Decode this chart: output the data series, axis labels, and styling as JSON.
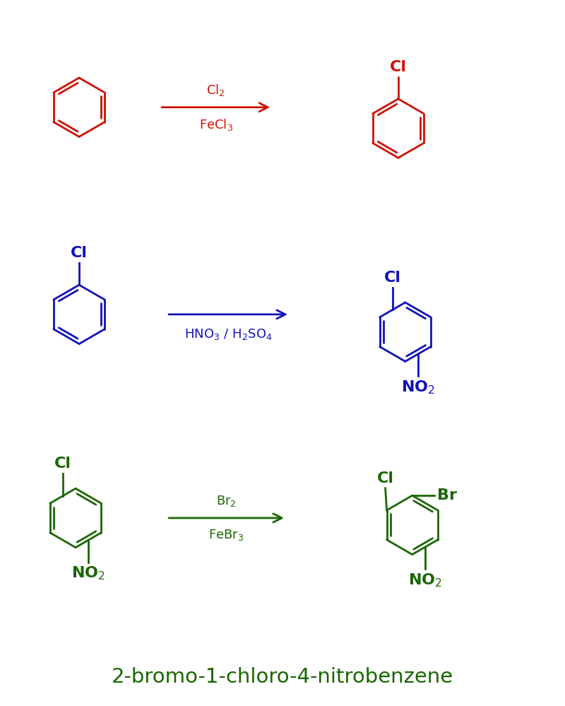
{
  "background_color": "#ffffff",
  "title_text": "2-bromo-1-chloro-4-nitrobenzene",
  "title_fontsize": 21,
  "title_color": "#1a6600",
  "row1_color": "#cc1100",
  "row2_color": "#1111bb",
  "row3_color": "#1a6600",
  "molecule_lw": 2.0,
  "label_fontsize": 16,
  "reagent_fontsize": 13,
  "row1_reagents_top": "Cl$_2$",
  "row1_reagents_bot": "FeCl$_3$",
  "row2_reagents": "HNO$_3$ / H$_2$SO$_4$",
  "row3_reagents_top": "Br$_2$",
  "row3_reagents_bot": "FeBr$_3$"
}
